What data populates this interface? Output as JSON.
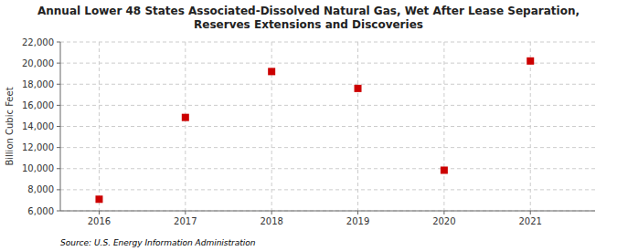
{
  "chart_data": {
    "type": "scatter",
    "title": "Annual Lower 48 States Associated-Dissolved Natural Gas, Wet After Lease Separation,\nReserves Extensions and Discoveries",
    "y_label": "Billion Cubic Feet",
    "annotations": [
      "Source: U.S. Energy Information Administration"
    ],
    "x": [
      2016,
      2017,
      2018,
      2019,
      2020,
      2021
    ],
    "values": [
      7100,
      14850,
      19200,
      17600,
      9850,
      20200
    ],
    "color": "#cc0000",
    "marker": "square",
    "grid": true,
    "xlim": [
      2015.55,
      2021.75
    ],
    "xticks": [
      2016,
      2017,
      2018,
      2019,
      2020,
      2021
    ],
    "ylim": [
      6000,
      22000
    ],
    "yticks": [
      {
        "value": 6000,
        "label": "6,000"
      },
      {
        "value": 8000,
        "label": "8,000"
      },
      {
        "value": 10000,
        "label": "10,000"
      },
      {
        "value": 12000,
        "label": "12,000"
      },
      {
        "value": 14000,
        "label": "14,000"
      },
      {
        "value": 16000,
        "label": "16,000"
      },
      {
        "value": 18000,
        "label": "18,000"
      },
      {
        "value": 20000,
        "label": "20,000"
      },
      {
        "value": 22000,
        "label": "22,000"
      }
    ]
  }
}
